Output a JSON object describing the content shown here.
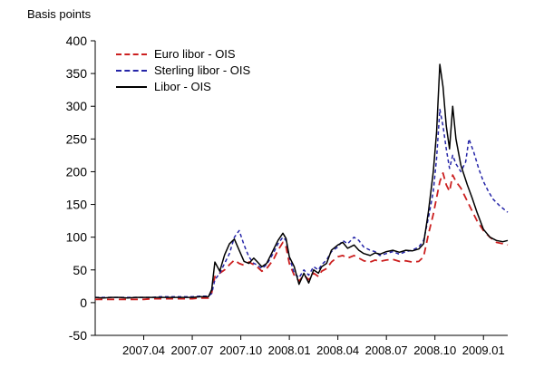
{
  "page": {
    "background": "#ffffff"
  },
  "chart_data": {
    "type": "line",
    "title": "",
    "ylabel": "Basis points",
    "xlabel": "",
    "x_unit": "months since 2007.01",
    "xlim": [
      0,
      25.5
    ],
    "ylim": [
      -50,
      400
    ],
    "yticks": [
      -50,
      0,
      50,
      100,
      150,
      200,
      250,
      300,
      350,
      400
    ],
    "xticks": [
      {
        "pos": 3,
        "label": "2007.04"
      },
      {
        "pos": 6,
        "label": "2007.07"
      },
      {
        "pos": 9,
        "label": "2007.10"
      },
      {
        "pos": 12,
        "label": "2008.01"
      },
      {
        "pos": 15,
        "label": "2008.04"
      },
      {
        "pos": 18,
        "label": "2008.07"
      },
      {
        "pos": 21,
        "label": "2008.10"
      },
      {
        "pos": 24,
        "label": "2009.01"
      }
    ],
    "grid": false,
    "legend_position": "top-left-inside",
    "series": [
      {
        "name": "Euro libor - OIS",
        "color": "#cc2020",
        "dash": "8 5",
        "width": 1.8,
        "points": [
          [
            0,
            5
          ],
          [
            0.5,
            5
          ],
          [
            1,
            5
          ],
          [
            1.5,
            5
          ],
          [
            2,
            5
          ],
          [
            2.5,
            5
          ],
          [
            3,
            5
          ],
          [
            3.5,
            6
          ],
          [
            4,
            6
          ],
          [
            4.5,
            6
          ],
          [
            5,
            6
          ],
          [
            5.5,
            6
          ],
          [
            6,
            6
          ],
          [
            6.5,
            7
          ],
          [
            7,
            7
          ],
          [
            7.2,
            15
          ],
          [
            7.4,
            40
          ],
          [
            7.7,
            45
          ],
          [
            8,
            50
          ],
          [
            8.3,
            58
          ],
          [
            8.6,
            65
          ],
          [
            8.9,
            60
          ],
          [
            9.2,
            57
          ],
          [
            9.5,
            62
          ],
          [
            9.8,
            58
          ],
          [
            10,
            55
          ],
          [
            10.3,
            48
          ],
          [
            10.6,
            52
          ],
          [
            11,
            65
          ],
          [
            11.3,
            80
          ],
          [
            11.6,
            92
          ],
          [
            11.8,
            85
          ],
          [
            12,
            60
          ],
          [
            12.3,
            42
          ],
          [
            12.6,
            33
          ],
          [
            12.9,
            42
          ],
          [
            13.2,
            35
          ],
          [
            13.5,
            45
          ],
          [
            13.8,
            40
          ],
          [
            14,
            48
          ],
          [
            14.3,
            52
          ],
          [
            14.6,
            62
          ],
          [
            15,
            70
          ],
          [
            15.3,
            72
          ],
          [
            15.6,
            68
          ],
          [
            16,
            72
          ],
          [
            16.3,
            68
          ],
          [
            16.6,
            64
          ],
          [
            17,
            62
          ],
          [
            17.3,
            65
          ],
          [
            17.6,
            63
          ],
          [
            18,
            65
          ],
          [
            18.4,
            66
          ],
          [
            18.8,
            63
          ],
          [
            19.2,
            64
          ],
          [
            19.6,
            62
          ],
          [
            20,
            63
          ],
          [
            20.3,
            70
          ],
          [
            20.6,
            105
          ],
          [
            20.9,
            135
          ],
          [
            21.1,
            160
          ],
          [
            21.3,
            185
          ],
          [
            21.5,
            198
          ],
          [
            21.7,
            180
          ],
          [
            21.9,
            170
          ],
          [
            22.1,
            195
          ],
          [
            22.3,
            185
          ],
          [
            22.6,
            175
          ],
          [
            23,
            155
          ],
          [
            23.3,
            140
          ],
          [
            23.6,
            125
          ],
          [
            24,
            110
          ],
          [
            24.4,
            100
          ],
          [
            24.8,
            92
          ],
          [
            25.2,
            90
          ],
          [
            25.5,
            88
          ]
        ]
      },
      {
        "name": "Sterling libor - OIS",
        "color": "#2525a8",
        "dash": "4 3",
        "width": 1.5,
        "points": [
          [
            0,
            8
          ],
          [
            0.5,
            8
          ],
          [
            1,
            8
          ],
          [
            1.5,
            8
          ],
          [
            2,
            8
          ],
          [
            2.5,
            8
          ],
          [
            3,
            8
          ],
          [
            3.5,
            8
          ],
          [
            4,
            9
          ],
          [
            4.5,
            9
          ],
          [
            5,
            9
          ],
          [
            5.5,
            9
          ],
          [
            6,
            9
          ],
          [
            6.5,
            10
          ],
          [
            7,
            10
          ],
          [
            7.2,
            14
          ],
          [
            7.4,
            35
          ],
          [
            7.7,
            45
          ],
          [
            8,
            60
          ],
          [
            8.3,
            75
          ],
          [
            8.6,
            100
          ],
          [
            8.9,
            110
          ],
          [
            9.2,
            88
          ],
          [
            9.5,
            70
          ],
          [
            9.8,
            60
          ],
          [
            10,
            58
          ],
          [
            10.3,
            52
          ],
          [
            10.6,
            58
          ],
          [
            11,
            75
          ],
          [
            11.3,
            90
          ],
          [
            11.6,
            100
          ],
          [
            11.8,
            95
          ],
          [
            12,
            70
          ],
          [
            12.3,
            45
          ],
          [
            12.6,
            38
          ],
          [
            12.9,
            50
          ],
          [
            13.2,
            42
          ],
          [
            13.5,
            55
          ],
          [
            13.8,
            50
          ],
          [
            14,
            58
          ],
          [
            14.3,
            65
          ],
          [
            14.6,
            78
          ],
          [
            15,
            85
          ],
          [
            15.3,
            95
          ],
          [
            15.6,
            90
          ],
          [
            16,
            100
          ],
          [
            16.3,
            95
          ],
          [
            16.6,
            85
          ],
          [
            17,
            80
          ],
          [
            17.3,
            78
          ],
          [
            17.6,
            72
          ],
          [
            18,
            75
          ],
          [
            18.4,
            78
          ],
          [
            18.8,
            74
          ],
          [
            19.2,
            78
          ],
          [
            19.6,
            80
          ],
          [
            20,
            85
          ],
          [
            20.3,
            95
          ],
          [
            20.6,
            130
          ],
          [
            20.9,
            170
          ],
          [
            21.1,
            220
          ],
          [
            21.3,
            295
          ],
          [
            21.5,
            270
          ],
          [
            21.7,
            235
          ],
          [
            21.9,
            205
          ],
          [
            22.1,
            225
          ],
          [
            22.3,
            212
          ],
          [
            22.6,
            200
          ],
          [
            22.9,
            215
          ],
          [
            23.1,
            250
          ],
          [
            23.4,
            230
          ],
          [
            23.7,
            205
          ],
          [
            24,
            185
          ],
          [
            24.3,
            170
          ],
          [
            24.6,
            158
          ],
          [
            25,
            148
          ],
          [
            25.5,
            138
          ]
        ]
      },
      {
        "name": "Libor - OIS",
        "color": "#000000",
        "dash": "",
        "width": 1.5,
        "points": [
          [
            0,
            8
          ],
          [
            0.5,
            7
          ],
          [
            1,
            8
          ],
          [
            1.5,
            8
          ],
          [
            2,
            7
          ],
          [
            2.5,
            8
          ],
          [
            3,
            8
          ],
          [
            3.5,
            8
          ],
          [
            4,
            8
          ],
          [
            4.5,
            8
          ],
          [
            5,
            8
          ],
          [
            5.5,
            8
          ],
          [
            6,
            8
          ],
          [
            6.5,
            9
          ],
          [
            7,
            9
          ],
          [
            7.2,
            20
          ],
          [
            7.4,
            62
          ],
          [
            7.7,
            48
          ],
          [
            8,
            73
          ],
          [
            8.3,
            90
          ],
          [
            8.6,
            97
          ],
          [
            8.9,
            80
          ],
          [
            9.2,
            63
          ],
          [
            9.5,
            60
          ],
          [
            9.8,
            68
          ],
          [
            10,
            63
          ],
          [
            10.3,
            55
          ],
          [
            10.6,
            60
          ],
          [
            11,
            80
          ],
          [
            11.3,
            95
          ],
          [
            11.6,
            106
          ],
          [
            11.8,
            98
          ],
          [
            12,
            70
          ],
          [
            12.3,
            55
          ],
          [
            12.6,
            28
          ],
          [
            12.9,
            45
          ],
          [
            13.2,
            30
          ],
          [
            13.5,
            50
          ],
          [
            13.8,
            45
          ],
          [
            14,
            55
          ],
          [
            14.3,
            60
          ],
          [
            14.6,
            80
          ],
          [
            15,
            88
          ],
          [
            15.3,
            92
          ],
          [
            15.6,
            83
          ],
          [
            16,
            88
          ],
          [
            16.3,
            80
          ],
          [
            16.6,
            75
          ],
          [
            17,
            72
          ],
          [
            17.3,
            76
          ],
          [
            17.6,
            74
          ],
          [
            18,
            78
          ],
          [
            18.4,
            80
          ],
          [
            18.8,
            77
          ],
          [
            19.2,
            80
          ],
          [
            19.6,
            79
          ],
          [
            20,
            82
          ],
          [
            20.3,
            90
          ],
          [
            20.6,
            140
          ],
          [
            20.9,
            200
          ],
          [
            21.1,
            260
          ],
          [
            21.3,
            364
          ],
          [
            21.5,
            330
          ],
          [
            21.7,
            270
          ],
          [
            21.9,
            235
          ],
          [
            22.1,
            300
          ],
          [
            22.3,
            250
          ],
          [
            22.6,
            210
          ],
          [
            23,
            180
          ],
          [
            23.3,
            160
          ],
          [
            23.6,
            138
          ],
          [
            24,
            112
          ],
          [
            24.4,
            100
          ],
          [
            24.8,
            95
          ],
          [
            25.2,
            93
          ],
          [
            25.5,
            95
          ]
        ]
      }
    ]
  }
}
